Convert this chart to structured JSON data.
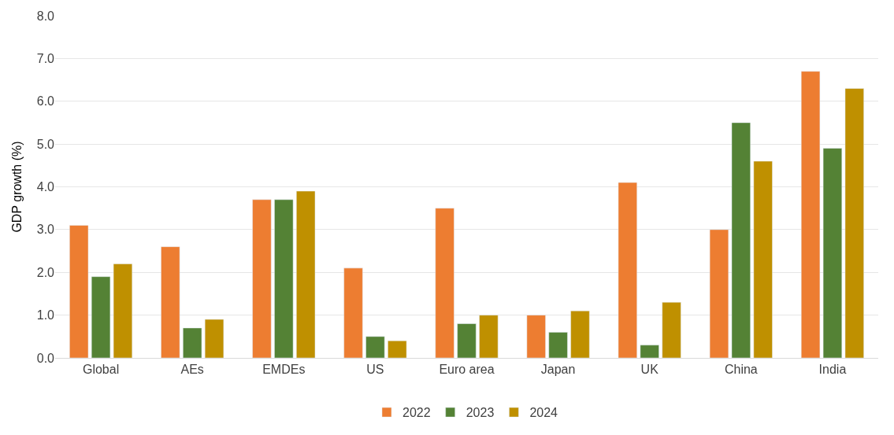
{
  "chart_data": {
    "type": "bar",
    "ylabel": "GDP growth (%)",
    "categories": [
      "Global",
      "AEs",
      "EMDEs",
      "US",
      "Euro area",
      "Japan",
      "UK",
      "China",
      "India"
    ],
    "series": [
      {
        "name": "2022",
        "color": "#ed7d31",
        "values": [
          3.1,
          2.6,
          3.7,
          2.1,
          3.5,
          1.0,
          4.1,
          3.0,
          6.7
        ]
      },
      {
        "name": "2023",
        "color": "#548235",
        "values": [
          1.9,
          0.7,
          3.7,
          0.5,
          0.8,
          0.6,
          0.3,
          5.5,
          4.9
        ]
      },
      {
        "name": "2024",
        "color": "#bf9000",
        "values": [
          2.2,
          0.9,
          3.9,
          0.4,
          1.0,
          1.1,
          1.3,
          4.6,
          6.3
        ]
      }
    ],
    "ylim": [
      0,
      8
    ],
    "yticks": [
      {
        "value": 0,
        "label": "0.0"
      },
      {
        "value": 1,
        "label": "1.0"
      },
      {
        "value": 2,
        "label": "2.0"
      },
      {
        "value": 3,
        "label": "3.0"
      },
      {
        "value": 4,
        "label": "4.0"
      },
      {
        "value": 5,
        "label": "5.0"
      },
      {
        "value": 6,
        "label": "6.0"
      },
      {
        "value": 7,
        "label": "7.0"
      },
      {
        "value": 8,
        "label": "8.0"
      }
    ],
    "grid": "y",
    "legend": "bottom"
  }
}
